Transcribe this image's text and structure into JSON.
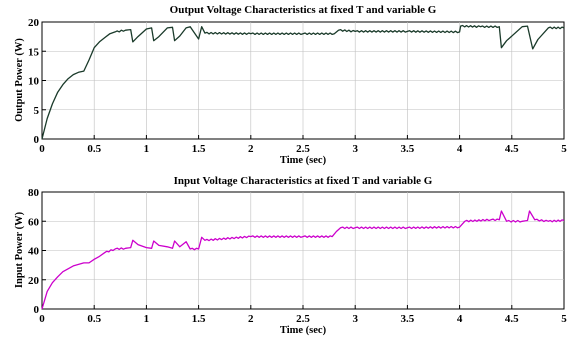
{
  "chart_data": [
    {
      "type": "line",
      "title": "Output Voltage Characteristics at fixed T and variable G",
      "xlabel": "Time (sec)",
      "ylabel": "Output Power (W)",
      "xlim": [
        0,
        5
      ],
      "ylim": [
        0,
        20
      ],
      "xticks": [
        "0",
        "0.5",
        "1",
        "1.5",
        "2",
        "2.5",
        "3",
        "3.5",
        "4",
        "4.5",
        "5"
      ],
      "yticks": [
        "0",
        "5",
        "10",
        "15",
        "20"
      ],
      "grid": true,
      "line_color": "#1a3a2a",
      "series": [
        {
          "x": [
            0,
            0.05,
            0.1,
            0.15,
            0.2,
            0.25,
            0.3,
            0.35,
            0.4,
            0.45,
            0.5,
            0.55,
            0.6,
            0.65,
            0.7,
            0.8,
            0.85,
            0.87,
            0.92,
            1.0,
            1.05,
            1.07,
            1.12,
            1.2,
            1.25,
            1.27,
            1.32,
            1.38,
            1.42,
            1.5,
            1.53,
            1.56,
            2.0,
            2.5,
            2.8,
            2.84,
            3.0,
            3.5,
            4.0,
            4.01,
            4.2,
            4.38,
            4.4,
            4.45,
            4.6,
            4.65,
            4.7,
            4.75,
            4.85,
            5.0
          ],
          "y": [
            0,
            3.5,
            6,
            8,
            9.3,
            10.3,
            11,
            11.4,
            11.6,
            13.5,
            15.6,
            16.6,
            17.3,
            18,
            18.3,
            18.6,
            18.7,
            16.6,
            17.5,
            18.8,
            19,
            16.8,
            17.5,
            19,
            19.1,
            16.8,
            17.6,
            19,
            19.2,
            17.1,
            19.2,
            18.1,
            18,
            18,
            18,
            18.6,
            18.4,
            18.4,
            18.3,
            19.3,
            19.2,
            19.2,
            15.6,
            16.8,
            19.2,
            19.3,
            15.4,
            17,
            19,
            19
          ]
        }
      ]
    },
    {
      "type": "line",
      "title": "Input Voltage Characteristics at fixed T and variable G",
      "xlabel": "Time (sec)",
      "ylabel": "Input Power (W)",
      "xlim": [
        0,
        5
      ],
      "ylim": [
        0,
        80
      ],
      "xticks": [
        "0",
        "0.5",
        "1",
        "1.5",
        "2",
        "2.5",
        "3",
        "3.5",
        "4",
        "4.5",
        "5"
      ],
      "yticks": [
        "0",
        "20",
        "40",
        "60",
        "80"
      ],
      "grid": true,
      "line_color": "#cc00cc",
      "series": [
        {
          "x": [
            0,
            0.05,
            0.1,
            0.15,
            0.2,
            0.3,
            0.4,
            0.45,
            0.5,
            0.55,
            0.6,
            0.7,
            0.8,
            0.85,
            0.87,
            0.92,
            1.0,
            1.05,
            1.07,
            1.12,
            1.2,
            1.25,
            1.27,
            1.32,
            1.38,
            1.42,
            1.5,
            1.53,
            1.56,
            2.0,
            2.5,
            2.78,
            2.82,
            2.86,
            3.0,
            3.5,
            4.0,
            4.05,
            4.3,
            4.38,
            4.4,
            4.45,
            4.6,
            4.65,
            4.67,
            4.72,
            4.85,
            5.0
          ],
          "y": [
            0,
            12,
            18,
            22,
            25.5,
            29.5,
            31.5,
            31.5,
            34,
            36,
            38.5,
            41,
            41.5,
            42,
            47,
            44,
            42,
            41.5,
            46.5,
            43.5,
            42.5,
            41.5,
            46.5,
            42.5,
            46,
            41,
            41,
            49,
            47,
            49.5,
            49.5,
            49.5,
            53,
            55.5,
            55.5,
            55.5,
            56,
            60,
            61,
            61,
            67,
            60,
            60,
            60.5,
            67,
            61,
            60,
            60.5
          ]
        }
      ]
    }
  ]
}
